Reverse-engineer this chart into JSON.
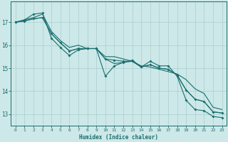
{
  "title": "",
  "xlabel": "Humidex (Indice chaleur)",
  "ylabel": "",
  "background_color": "#cde8e8",
  "line_color": "#1a6e6e",
  "grid_color": "#aacece",
  "xlim": [
    -0.5,
    23.5
  ],
  "ylim": [
    12.5,
    17.9
  ],
  "yticks": [
    13,
    14,
    15,
    16,
    17
  ],
  "xticks": [
    0,
    1,
    2,
    3,
    4,
    5,
    6,
    7,
    8,
    9,
    10,
    11,
    12,
    13,
    14,
    15,
    16,
    17,
    18,
    19,
    20,
    21,
    22,
    23
  ],
  "series": [
    [
      17.0,
      17.1,
      17.35,
      17.4,
      16.3,
      15.9,
      15.55,
      15.8,
      15.85,
      15.85,
      14.65,
      15.1,
      15.25,
      15.35,
      15.05,
      15.3,
      15.1,
      15.1,
      14.65,
      13.6,
      13.2,
      13.15,
      12.9,
      12.85
    ],
    [
      17.0,
      17.1,
      17.2,
      17.35,
      16.6,
      16.2,
      15.9,
      16.0,
      15.85,
      15.85,
      15.5,
      15.5,
      15.4,
      15.3,
      15.1,
      15.05,
      14.95,
      14.85,
      14.75,
      14.5,
      14.1,
      13.9,
      13.3,
      13.2
    ],
    [
      17.0,
      17.05,
      17.15,
      17.2,
      16.5,
      16.1,
      15.75,
      15.85,
      15.85,
      15.85,
      15.4,
      15.35,
      15.3,
      15.3,
      15.05,
      15.15,
      15.0,
      14.95,
      14.7,
      14.05,
      13.65,
      13.55,
      13.1,
      13.05
    ],
    [
      17.0,
      17.05,
      17.15,
      17.2,
      16.5,
      16.1,
      15.75,
      15.85,
      15.85,
      15.85,
      15.4,
      15.2,
      15.25,
      15.3,
      15.05,
      15.15,
      15.0,
      14.95,
      14.7,
      14.05,
      13.65,
      13.55,
      13.1,
      13.05
    ]
  ],
  "markers": [
    true,
    false,
    true,
    false
  ],
  "marker_style": "D",
  "marker_size": 2.0,
  "linewidth": 0.8
}
